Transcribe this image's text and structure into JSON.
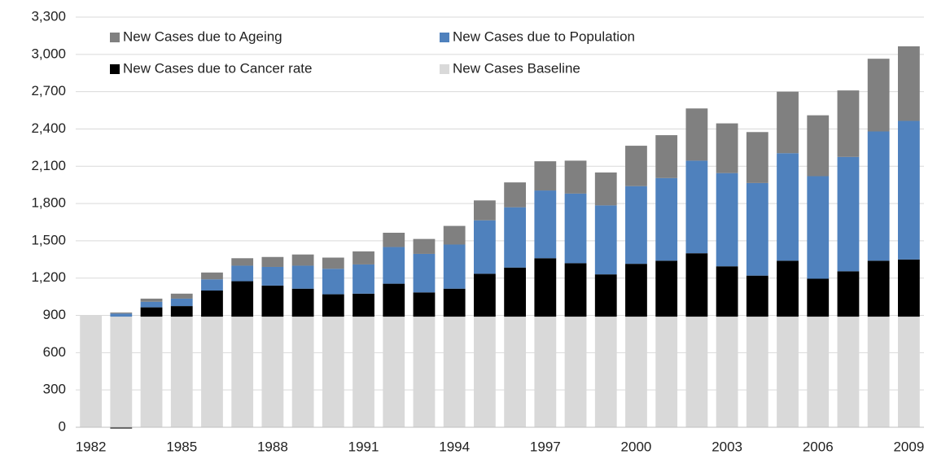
{
  "chart_data": {
    "type": "stacked-bar",
    "categories": [
      "1982",
      null,
      null,
      "1985",
      null,
      null,
      "1988",
      null,
      null,
      "1991",
      null,
      null,
      "1994",
      null,
      null,
      "1997",
      null,
      null,
      "2000",
      null,
      null,
      "2003",
      null,
      null,
      "2006",
      null,
      null,
      "2009"
    ],
    "series": [
      {
        "name": "New Cases Baseline",
        "color": "#d9d9d9",
        "values": [
          900,
          890,
          890,
          890,
          890,
          890,
          890,
          890,
          890,
          890,
          890,
          890,
          890,
          890,
          890,
          890,
          890,
          890,
          890,
          890,
          890,
          890,
          890,
          890,
          890,
          890,
          890,
          890
        ]
      },
      {
        "name": "New Cases due to Cancer rate",
        "color": "#000000",
        "values": [
          0,
          -10,
          75,
          85,
          210,
          285,
          250,
          225,
          180,
          185,
          265,
          195,
          225,
          345,
          395,
          470,
          430,
          340,
          425,
          450,
          510,
          405,
          330,
          450,
          305,
          365,
          450,
          460
        ]
      },
      {
        "name": "New Cases due to Population",
        "color": "#4f81bd",
        "values": [
          0,
          25,
          45,
          60,
          90,
          125,
          150,
          185,
          205,
          235,
          295,
          310,
          355,
          430,
          485,
          545,
          560,
          555,
          625,
          665,
          745,
          750,
          745,
          865,
          825,
          920,
          1040,
          1115
        ]
      },
      {
        "name": "New Cases due to Ageing",
        "color": "#808080",
        "values": [
          0,
          8,
          25,
          40,
          55,
          60,
          80,
          90,
          90,
          105,
          115,
          120,
          150,
          160,
          200,
          235,
          265,
          265,
          325,
          345,
          420,
          400,
          410,
          495,
          490,
          535,
          585,
          600
        ]
      }
    ],
    "ylim": [
      0,
      3300
    ],
    "yticks": [
      0,
      300,
      600,
      900,
      {
        "value": 1200,
        "label": "1,200"
      },
      {
        "value": 1500,
        "label": "1,500"
      },
      {
        "value": 1800,
        "label": "1,800"
      },
      {
        "value": 2100,
        "label": "2,100"
      },
      {
        "value": 2400,
        "label": "2,400"
      },
      {
        "value": 2700,
        "label": "2,700"
      },
      {
        "value": 3000,
        "label": "3,000"
      },
      {
        "value": 3300,
        "label": "3,300"
      }
    ],
    "grid": true
  }
}
